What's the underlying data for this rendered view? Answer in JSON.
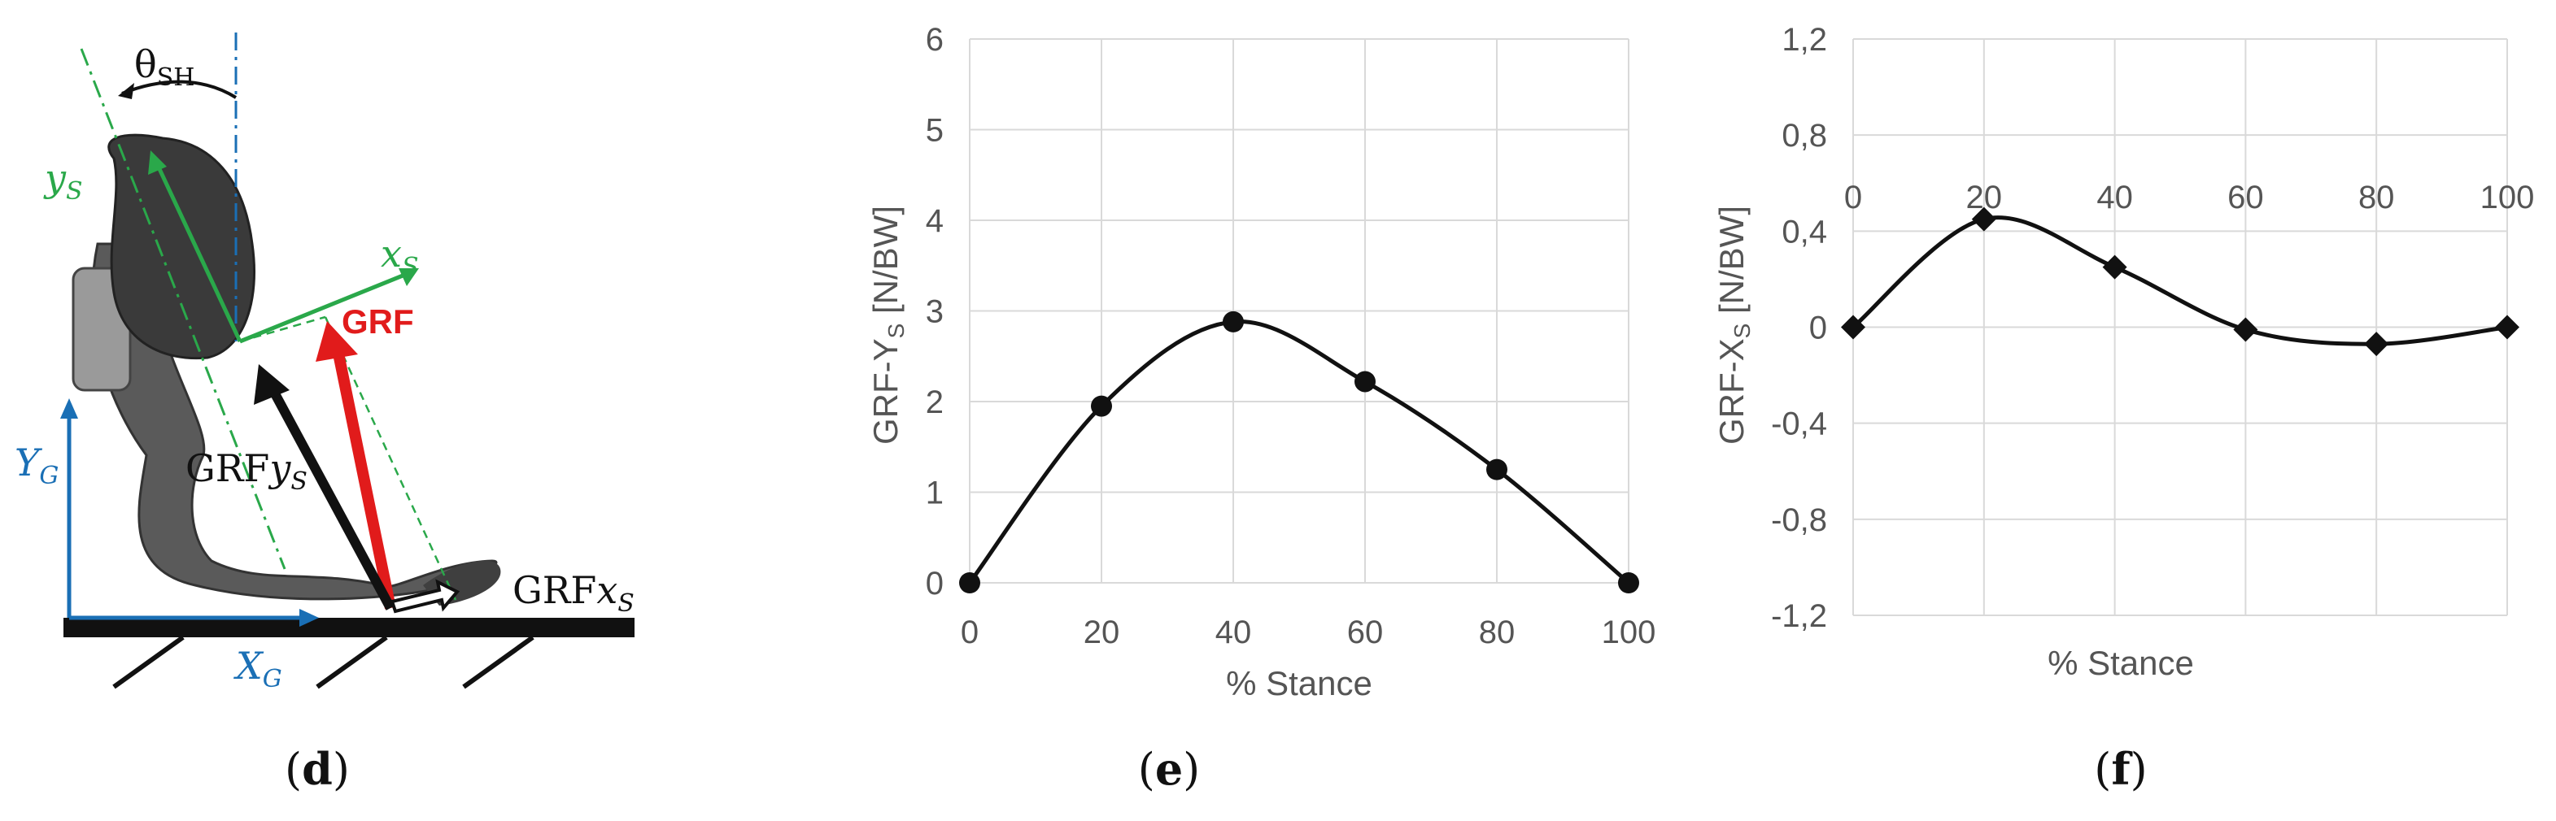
{
  "panels": {
    "d": {
      "label": "d"
    },
    "e": {
      "label": "e"
    },
    "f": {
      "label": "f"
    }
  },
  "diagram": {
    "angle_label": "θ",
    "angle_subscript": "SH",
    "ys_label": "y",
    "ys_sub": "S",
    "xs_label": "x",
    "xs_sub": "S",
    "grf_label": "GRF",
    "grf_ys_label": "GRF",
    "grf_ys_italic": "y",
    "grf_ys_sub": "S",
    "grf_xs_label": "GRF",
    "grf_xs_italic": "x",
    "grf_xs_sub": "S",
    "yg_label": "Y",
    "yg_sub": "G",
    "xg_label": "X",
    "xg_sub": "G",
    "colors": {
      "sagittal": "#1a6fb5",
      "shank": "#2aa84a",
      "grf": "#e11b1b",
      "black": "#111111"
    }
  },
  "chart_data": [
    {
      "id": "e",
      "type": "line",
      "xlabel": "% Stance",
      "ylabel_main": "GRF-Y",
      "ylabel_sub": "S",
      "ylabel_unit": " [N/BW]",
      "x": [
        0,
        20,
        40,
        60,
        80,
        100
      ],
      "values": [
        0,
        1.95,
        2.88,
        2.22,
        1.25,
        0
      ],
      "xlim": [
        0,
        100
      ],
      "ylim": [
        0,
        6
      ],
      "xticks": [
        "0",
        "20",
        "40",
        "60",
        "80",
        "100"
      ],
      "yticks": [
        "0",
        "1",
        "2",
        "3",
        "4",
        "5",
        "6"
      ],
      "marker": "circle",
      "grid": true
    },
    {
      "id": "f",
      "type": "line",
      "xlabel": "% Stance",
      "ylabel_main": "GRF-X",
      "ylabel_sub": "S",
      "ylabel_unit": " [N/BW]",
      "x": [
        0,
        20,
        40,
        60,
        80,
        100
      ],
      "values": [
        0,
        0.45,
        0.25,
        -0.01,
        -0.07,
        0
      ],
      "xlim": [
        0,
        100
      ],
      "ylim": [
        -1.2,
        1.2
      ],
      "xticks": [
        "0",
        "20",
        "40",
        "60",
        "80",
        "100"
      ],
      "yticks": [
        "-1,2",
        "-0,8",
        "-0,4",
        "0",
        "0,4",
        "0,8",
        "1,2"
      ],
      "marker": "diamond",
      "grid": true
    }
  ]
}
